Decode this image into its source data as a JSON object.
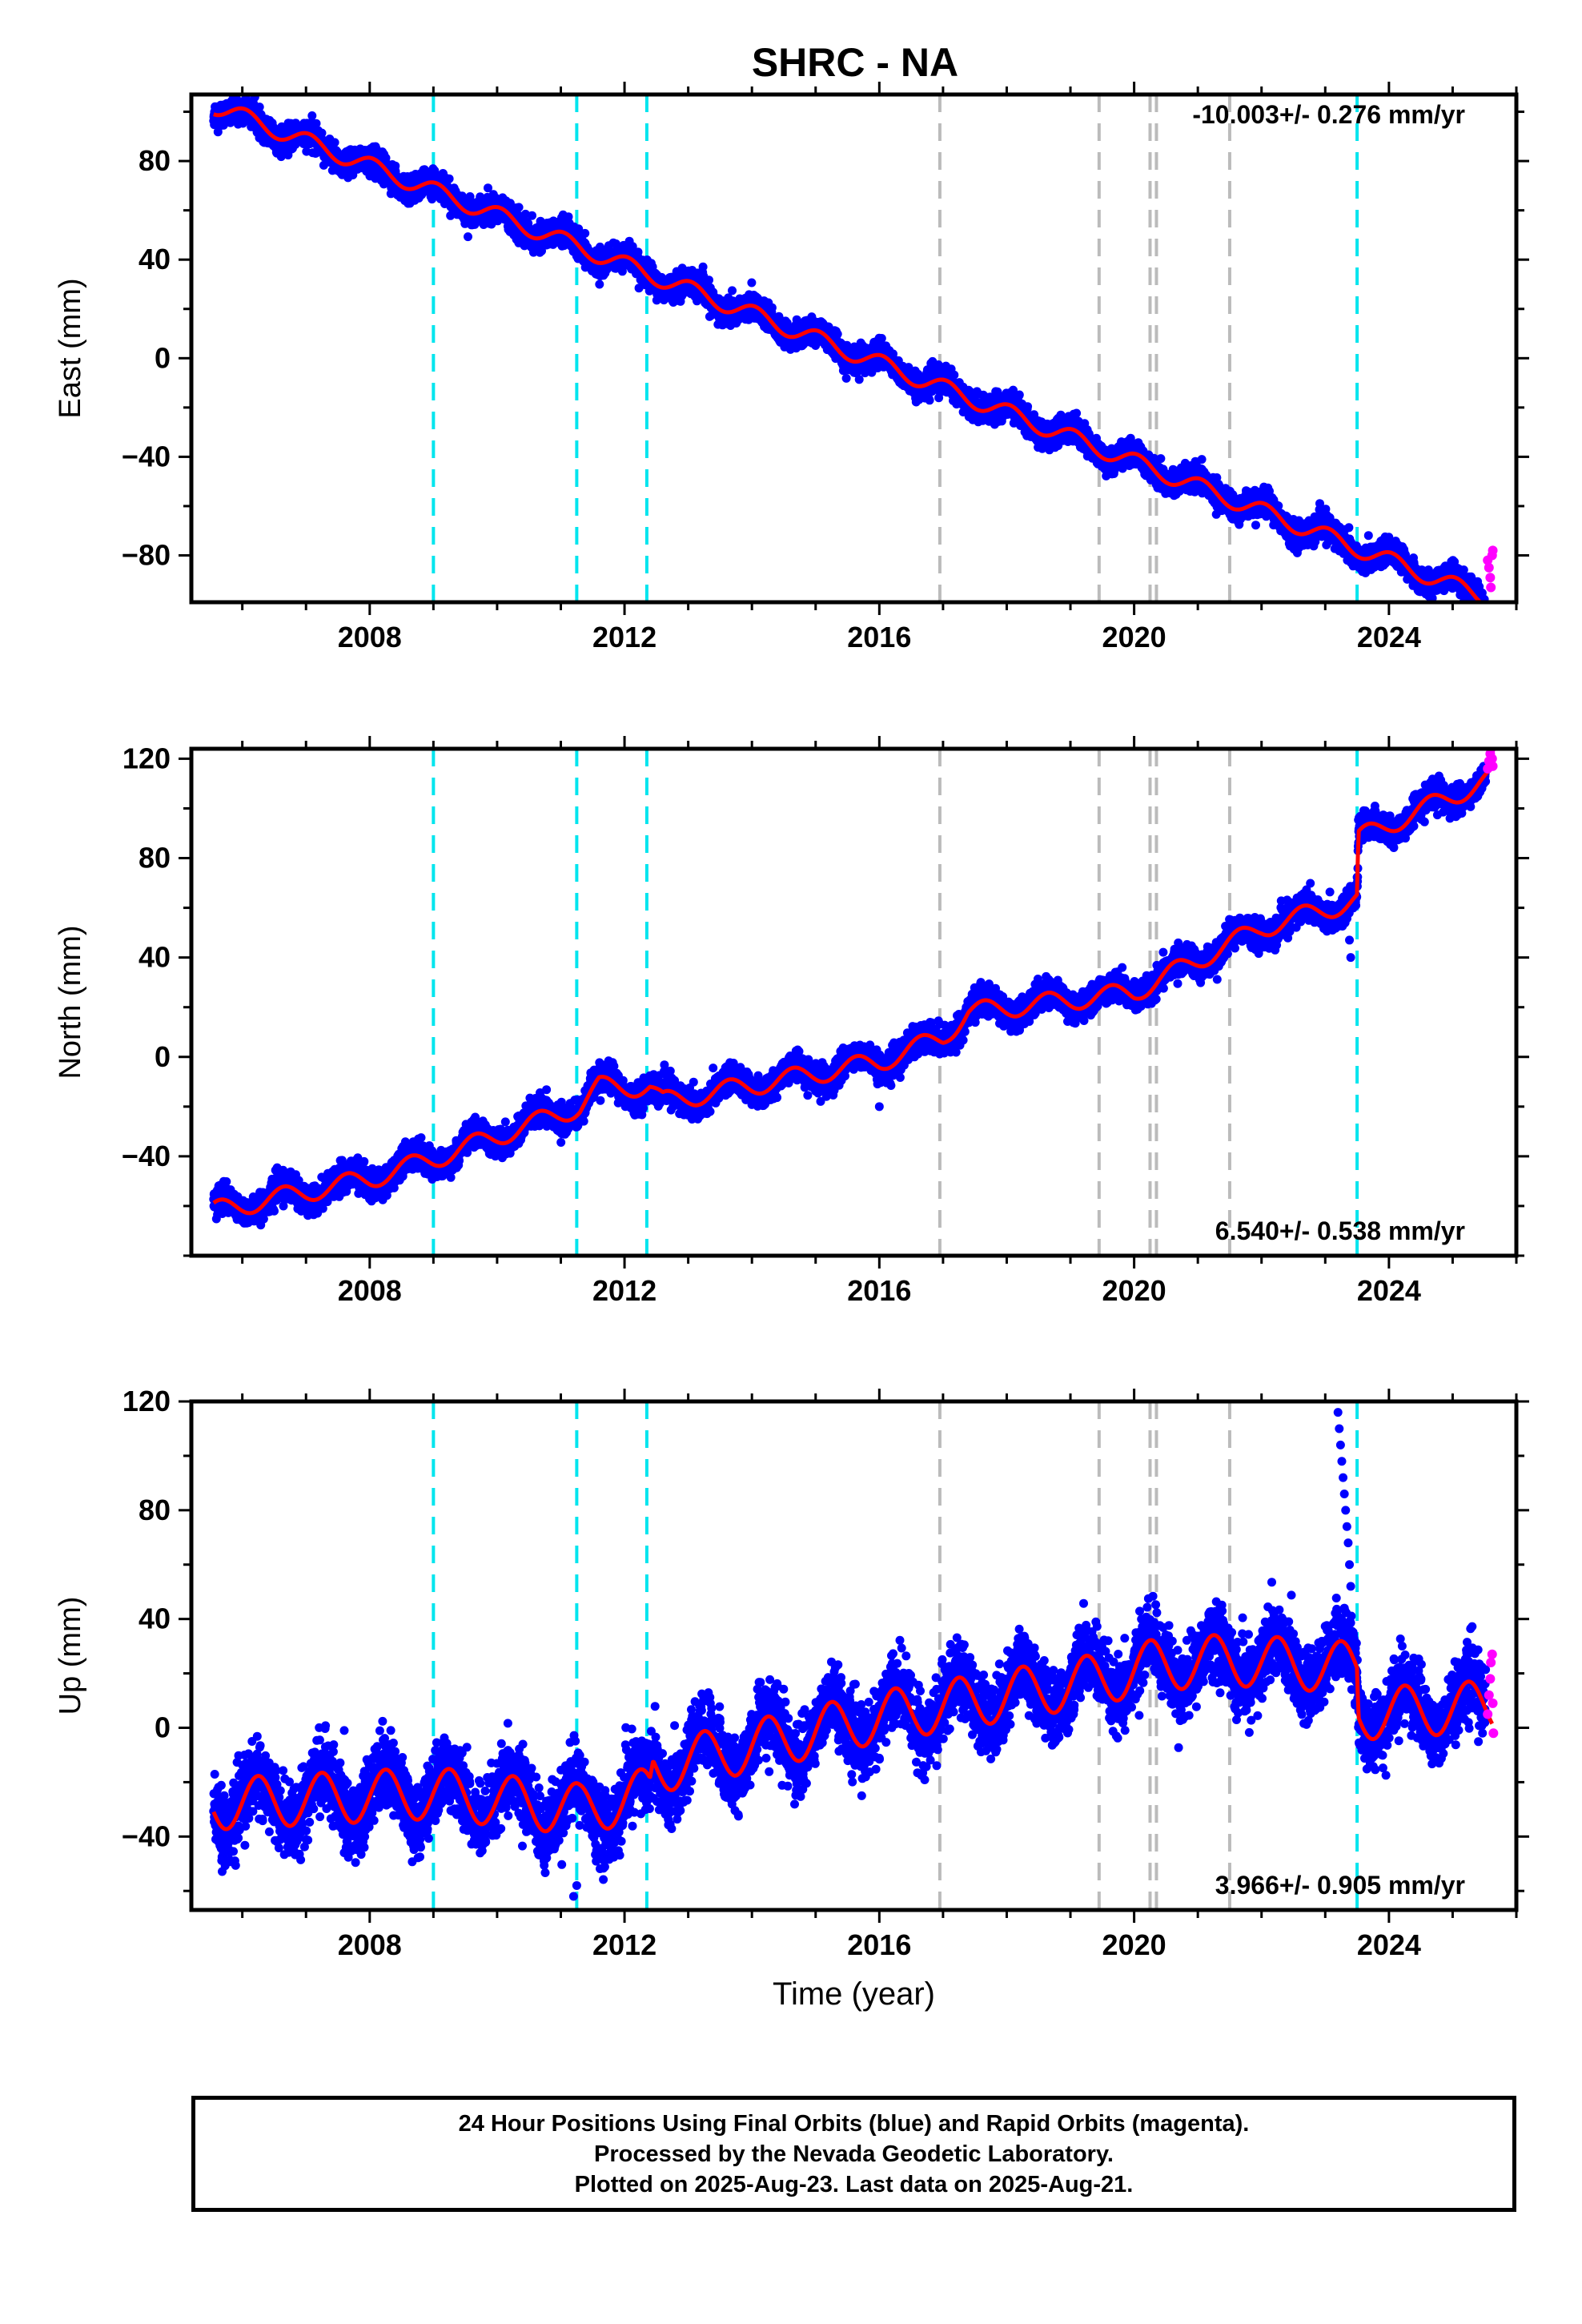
{
  "title": "SHRC - NA",
  "colors": {
    "final": "#0000ff",
    "rapid": "#ff00ff",
    "model": "#ff0000",
    "event_cyan": "#00e5ee",
    "event_gray": "#bbbbbb"
  },
  "chart_data": [
    {
      "type": "scatter",
      "name": "east",
      "ylabel": "East (mm)",
      "xlabel": "",
      "xlim": [
        2005.2,
        2026.0
      ],
      "ylim": [
        -99,
        107
      ],
      "xticks": [
        2008,
        2012,
        2016,
        2020,
        2024
      ],
      "yticks": [
        -80,
        -40,
        0,
        40,
        80
      ],
      "velocity_label": "-10.003+/- 0.276 mm/yr",
      "velocity_position": "top-right",
      "trend": {
        "rate": -10.003,
        "y_at_2005_5": 103.0,
        "annual_amplitude": 3.5,
        "annual_phase": 0.2
      },
      "scatter_noise": 2.6,
      "offsets": [],
      "outliers": [],
      "rapid_points": [
        [
          2025.55,
          -82
        ],
        [
          2025.57,
          -85
        ],
        [
          2025.59,
          -89
        ],
        [
          2025.6,
          -93
        ],
        [
          2025.62,
          -80
        ],
        [
          2025.63,
          -78
        ]
      ],
      "data_start": 2005.55,
      "data_end": 2025.52
    },
    {
      "type": "scatter",
      "name": "north",
      "ylabel": "North (mm)",
      "xlabel": "",
      "xlim": [
        2005.2,
        2026.0
      ],
      "ylim": [
        -80,
        124
      ],
      "xticks": [
        2008,
        2012,
        2016,
        2020,
        2024
      ],
      "yticks": [
        -40,
        0,
        40,
        80,
        120
      ],
      "velocity_label": "6.540+/- 0.538 mm/yr",
      "velocity_position": "bottom-right",
      "trend_points": [
        [
          2005.55,
          -62
        ],
        [
          2008.0,
          -49
        ],
        [
          2009.0,
          -41
        ],
        [
          2011.3,
          -20
        ],
        [
          2011.6,
          -12
        ],
        [
          2012.4,
          -12
        ],
        [
          2012.6,
          -18
        ],
        [
          2016.0,
          -2
        ],
        [
          2017.0,
          8
        ],
        [
          2017.4,
          18
        ],
        [
          2020.0,
          26
        ],
        [
          2022.0,
          52
        ],
        [
          2023.5,
          63
        ],
        [
          2023.52,
          88
        ],
        [
          2025.6,
          112
        ]
      ],
      "annual_amplitude": 4.0,
      "annual_phase": 0.6,
      "scatter_noise": 2.8,
      "outliers": [
        [
          2023.4,
          40
        ],
        [
          2023.38,
          47
        ],
        [
          2016.0,
          -20
        ]
      ],
      "rapid_points": [
        [
          2025.55,
          116
        ],
        [
          2025.57,
          119
        ],
        [
          2025.59,
          122
        ],
        [
          2025.6,
          124
        ],
        [
          2025.62,
          120
        ],
        [
          2025.63,
          117
        ]
      ],
      "data_start": 2005.55,
      "data_end": 2025.52
    },
    {
      "type": "scatter",
      "name": "up",
      "ylabel": "Up (mm)",
      "xlabel": "Time (year)",
      "xlim": [
        2005.2,
        2026.0
      ],
      "ylim": [
        -67,
        120
      ],
      "xticks": [
        2008,
        2012,
        2016,
        2020,
        2024
      ],
      "yticks": [
        -40,
        0,
        40,
        80,
        120
      ],
      "velocity_label": "3.966+/- 0.905 mm/yr",
      "velocity_position": "bottom-right",
      "trend_points": [
        [
          2005.55,
          -28
        ],
        [
          2009.0,
          -24
        ],
        [
          2011.3,
          -30
        ],
        [
          2012.4,
          -24
        ],
        [
          2012.45,
          -15
        ],
        [
          2016.0,
          4
        ],
        [
          2019.5,
          18
        ],
        [
          2020.3,
          23
        ],
        [
          2021.5,
          25
        ],
        [
          2023.5,
          22
        ],
        [
          2023.52,
          5
        ],
        [
          2025.6,
          8
        ]
      ],
      "annual_amplitude": 9.5,
      "annual_phase": 0.0,
      "scatter_noise": 6.5,
      "outliers": [
        [
          2023.2,
          116
        ],
        [
          2023.22,
          110
        ],
        [
          2023.24,
          104
        ],
        [
          2023.26,
          98
        ],
        [
          2023.28,
          92
        ],
        [
          2023.3,
          86
        ],
        [
          2023.32,
          80
        ],
        [
          2023.34,
          74
        ],
        [
          2023.36,
          68
        ],
        [
          2023.38,
          60
        ],
        [
          2023.4,
          52
        ],
        [
          2023.3,
          44
        ],
        [
          2011.2,
          -62
        ],
        [
          2011.25,
          -58
        ],
        [
          2007.6,
          -1
        ]
      ],
      "rapid_points": [
        [
          2025.55,
          5
        ],
        [
          2025.57,
          12
        ],
        [
          2025.59,
          18
        ],
        [
          2025.6,
          24
        ],
        [
          2025.62,
          27
        ],
        [
          2025.63,
          9
        ],
        [
          2025.64,
          -2
        ]
      ],
      "data_start": 2005.55,
      "data_end": 2025.52
    }
  ],
  "events": {
    "cyan": [
      2009.0,
      2011.25,
      2012.35,
      2023.5
    ],
    "gray": [
      2016.95,
      2019.45,
      2020.25,
      2020.35,
      2021.5
    ]
  },
  "caption": {
    "line1": "24 Hour Positions Using Final Orbits (blue) and Rapid Orbits (magenta).",
    "line2": "Processed by the Nevada Geodetic Laboratory.",
    "line3": "Plotted on 2025-Aug-23. Last data on 2025-Aug-21."
  }
}
